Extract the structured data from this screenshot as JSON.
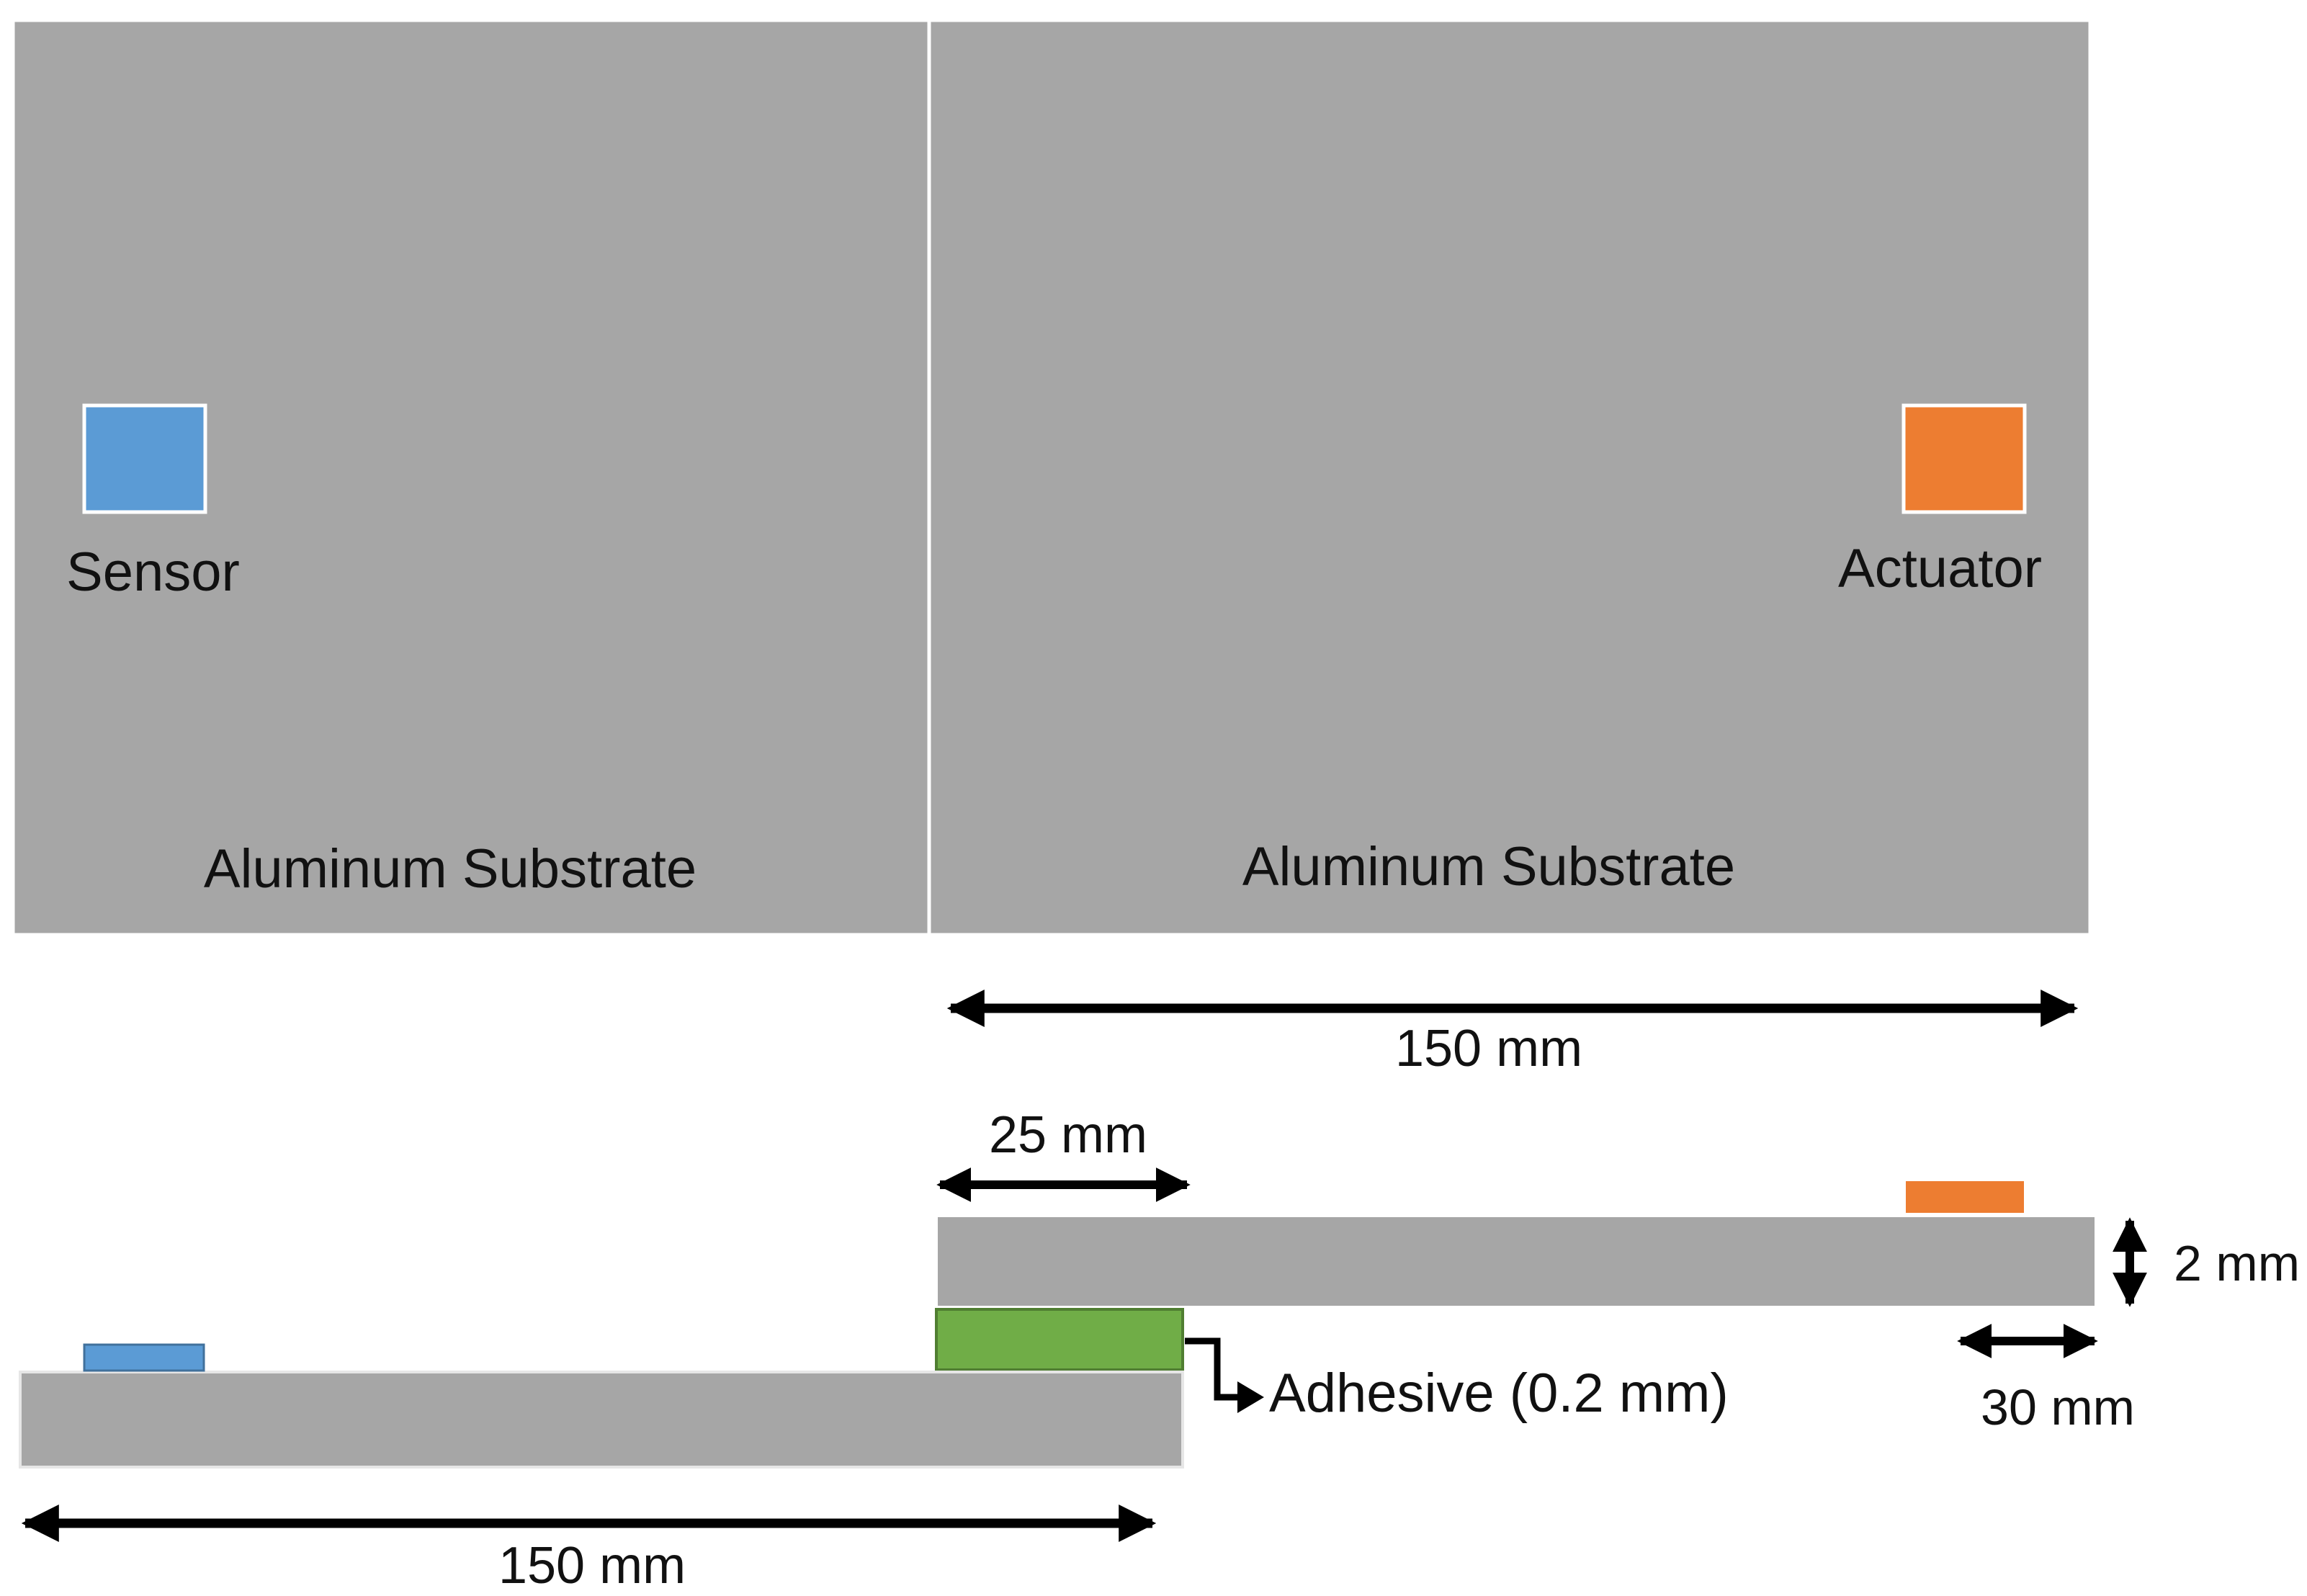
{
  "top_view": {
    "left_plate": {
      "label": "Aluminum Substrate"
    },
    "right_plate": {
      "label": "Aluminum Substrate"
    },
    "sensor": {
      "label": "Sensor"
    },
    "actuator": {
      "label": "Actuator"
    }
  },
  "dimensions": {
    "top_plate_length": "150 mm",
    "overlap": "25 mm",
    "thickness": "2 mm",
    "actuator_offset": "30 mm",
    "bottom_plate_length": "150 mm"
  },
  "adhesive": {
    "label": "Adhesive (0.2 mm)"
  },
  "colors": {
    "substrate": "#a6a6a6",
    "sensor": "#5b9bd5",
    "actuator": "#ed7d31",
    "adhesive": "#70ad47",
    "adhesive_border": "#507e32",
    "arrow": "#000000"
  }
}
